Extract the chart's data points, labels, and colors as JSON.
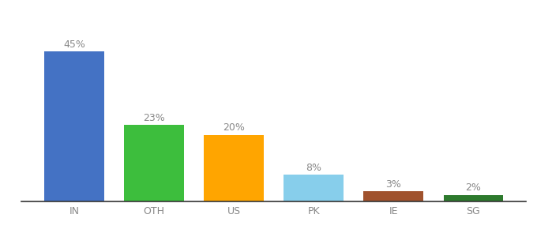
{
  "categories": [
    "IN",
    "OTH",
    "US",
    "PK",
    "IE",
    "SG"
  ],
  "values": [
    45,
    23,
    20,
    8,
    3,
    2
  ],
  "labels": [
    "45%",
    "23%",
    "20%",
    "8%",
    "3%",
    "2%"
  ],
  "bar_colors": [
    "#4472C4",
    "#3DBE3D",
    "#FFA500",
    "#87CEEB",
    "#A0522D",
    "#2D7A2D"
  ],
  "background_color": "#ffffff",
  "ylim": [
    0,
    52
  ],
  "bar_width": 0.75,
  "label_fontsize": 9,
  "tick_fontsize": 9,
  "label_color": "#888888",
  "tick_color": "#888888"
}
